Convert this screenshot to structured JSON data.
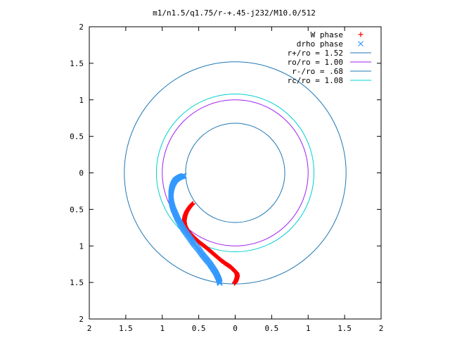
{
  "chart_data": {
    "type": "scatter",
    "title": "m1/n1.5/q1.75/r-+.45-j232/M10.0/512",
    "xlabel": "",
    "ylabel": "",
    "xlim": [
      -2,
      2
    ],
    "ylim": [
      -2,
      2
    ],
    "x_ticks": [
      "2",
      "1.5",
      "1",
      "0.5",
      "0",
      "0.5",
      "1",
      "1.5",
      "2"
    ],
    "y_ticks": [
      "2",
      "1.5",
      "1",
      "0.5",
      "0",
      "0.5",
      "1",
      "1.5",
      "2"
    ],
    "grid": false,
    "legend_position": "top-right",
    "series": [
      {
        "name": "W phase",
        "kind": "points",
        "marker": "plus",
        "color": "#ff0000",
        "points": [
          [
            -0.58,
            -0.42
          ],
          [
            -0.61,
            -0.45
          ],
          [
            -0.64,
            -0.49
          ],
          [
            -0.67,
            -0.54
          ],
          [
            -0.69,
            -0.6
          ],
          [
            -0.7,
            -0.66
          ],
          [
            -0.69,
            -0.72
          ],
          [
            -0.66,
            -0.78
          ],
          [
            -0.61,
            -0.84
          ],
          [
            -0.55,
            -0.9
          ],
          [
            -0.48,
            -0.96
          ],
          [
            -0.4,
            -1.02
          ],
          [
            -0.33,
            -1.08
          ],
          [
            -0.26,
            -1.14
          ],
          [
            -0.19,
            -1.2
          ],
          [
            -0.12,
            -1.25
          ],
          [
            -0.06,
            -1.29
          ],
          [
            -0.02,
            -1.33
          ],
          [
            0.02,
            -1.37
          ],
          [
            0.03,
            -1.41
          ],
          [
            0.02,
            -1.45
          ],
          [
            0.01,
            -1.48
          ],
          [
            -0.01,
            -1.51
          ]
        ]
      },
      {
        "name": "drho phase",
        "kind": "points",
        "marker": "cross",
        "color": "#3399ff",
        "points": [
          [
            -0.7,
            -0.04
          ],
          [
            -0.74,
            -0.05
          ],
          [
            -0.78,
            -0.07
          ],
          [
            -0.82,
            -0.1
          ],
          [
            -0.85,
            -0.15
          ],
          [
            -0.87,
            -0.21
          ],
          [
            -0.88,
            -0.28
          ],
          [
            -0.88,
            -0.35
          ],
          [
            -0.87,
            -0.42
          ],
          [
            -0.85,
            -0.49
          ],
          [
            -0.82,
            -0.56
          ],
          [
            -0.79,
            -0.63
          ],
          [
            -0.75,
            -0.7
          ],
          [
            -0.71,
            -0.77
          ],
          [
            -0.66,
            -0.84
          ],
          [
            -0.61,
            -0.91
          ],
          [
            -0.56,
            -0.98
          ],
          [
            -0.5,
            -1.05
          ],
          [
            -0.45,
            -1.12
          ],
          [
            -0.4,
            -1.18
          ],
          [
            -0.35,
            -1.24
          ],
          [
            -0.31,
            -1.3
          ],
          [
            -0.27,
            -1.36
          ],
          [
            -0.24,
            -1.42
          ],
          [
            -0.22,
            -1.47
          ],
          [
            -0.21,
            -1.51
          ]
        ]
      },
      {
        "name": "r+/ro = 1.52",
        "kind": "circle",
        "radius": 1.52,
        "color": "#1f77b4"
      },
      {
        "name": "ro/ro = 1.00",
        "kind": "circle",
        "radius": 1.0,
        "color": "#a020f0"
      },
      {
        "name": "r-/ro = .68",
        "kind": "circle",
        "radius": 0.68,
        "color": "#1f77b4"
      },
      {
        "name": "rc/ro = 1.08",
        "kind": "circle",
        "radius": 1.08,
        "color": "#00d0d0"
      }
    ]
  }
}
